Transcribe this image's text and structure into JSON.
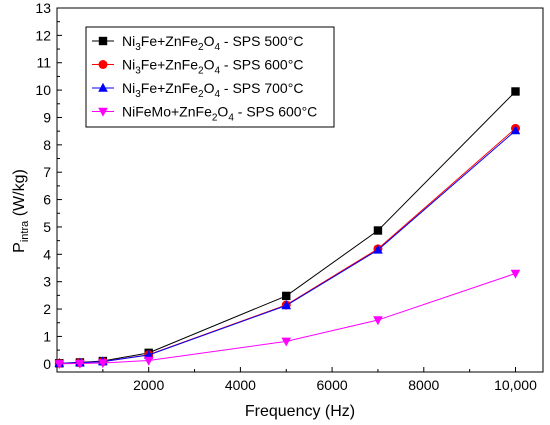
{
  "chart_data": {
    "type": "line",
    "xlabel": "Frequency (Hz)",
    "ylabel_main": "P",
    "ylabel_sub": "intra",
    "ylabel_unit": " (W/kg)",
    "xlim": [
      0,
      10600
    ],
    "ylim": [
      -0.3,
      13
    ],
    "x_ticks": [
      {
        "value": 2000,
        "label": "2000"
      },
      {
        "value": 4000,
        "label": "4000"
      },
      {
        "value": 6000,
        "label": "6000"
      },
      {
        "value": 8000,
        "label": "8000"
      },
      {
        "value": 10000,
        "label": "10,000"
      }
    ],
    "y_ticks": [
      0,
      1,
      2,
      3,
      4,
      5,
      6,
      7,
      8,
      9,
      10,
      11,
      12,
      13
    ],
    "legend_position": "top-left",
    "series": [
      {
        "name": "Ni3Fe+ZnFe2O4 - SPS 500°C",
        "legend_parts": [
          [
            "Ni",
            ""
          ],
          [
            "3",
            "sub"
          ],
          [
            "Fe+ZnFe",
            ""
          ],
          [
            "2",
            "sub"
          ],
          [
            "O",
            ""
          ],
          [
            "4",
            "sub"
          ],
          [
            " - SPS 500°C",
            ""
          ]
        ],
        "color": "#000000",
        "marker": "square",
        "x": [
          50,
          500,
          1000,
          2000,
          5000,
          7000,
          10000
        ],
        "y": [
          0.02,
          0.05,
          0.1,
          0.4,
          2.48,
          4.87,
          9.95
        ]
      },
      {
        "name": "Ni3Fe+ZnFe2O4 - SPS 600°C",
        "legend_parts": [
          [
            "Ni",
            ""
          ],
          [
            "3",
            "sub"
          ],
          [
            "Fe+ZnFe",
            ""
          ],
          [
            "2",
            "sub"
          ],
          [
            "O",
            ""
          ],
          [
            "4",
            "sub"
          ],
          [
            " - SPS 600°C",
            ""
          ]
        ],
        "color": "#ff0000",
        "marker": "circle",
        "x": [
          50,
          500,
          1000,
          2000,
          5000,
          7000,
          10000
        ],
        "y": [
          0.02,
          0.04,
          0.08,
          0.33,
          2.15,
          4.2,
          8.6
        ]
      },
      {
        "name": "Ni3Fe+ZnFe2O4 - SPS 700°C",
        "legend_parts": [
          [
            "Ni",
            ""
          ],
          [
            "3",
            "sub"
          ],
          [
            "Fe+ZnFe",
            ""
          ],
          [
            "2",
            "sub"
          ],
          [
            "O",
            ""
          ],
          [
            "4",
            "sub"
          ],
          [
            " - SPS 700°C",
            ""
          ]
        ],
        "color": "#0000ff",
        "marker": "triangle-up",
        "x": [
          50,
          500,
          1000,
          2000,
          5000,
          7000,
          10000
        ],
        "y": [
          0.02,
          0.04,
          0.08,
          0.32,
          2.13,
          4.16,
          8.52
        ]
      },
      {
        "name": "NiFeMo+ZnFe2O4 - SPS 600°C",
        "legend_parts": [
          [
            "NiFeMo+ZnFe",
            ""
          ],
          [
            "2",
            "sub"
          ],
          [
            "O",
            ""
          ],
          [
            "4",
            "sub"
          ],
          [
            " - SPS 600°C",
            ""
          ]
        ],
        "color": "#ff00ff",
        "marker": "triangle-down",
        "x": [
          50,
          500,
          1000,
          2000,
          5000,
          7000,
          10000
        ],
        "y": [
          0.0,
          0.01,
          0.03,
          0.12,
          0.82,
          1.6,
          3.3
        ]
      }
    ]
  }
}
